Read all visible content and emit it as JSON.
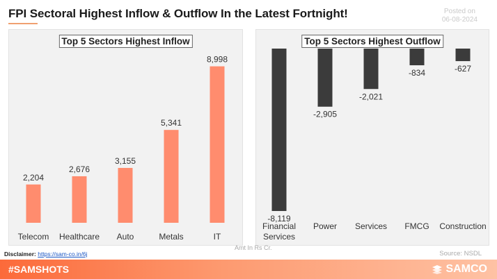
{
  "header": {
    "title": "FPI Sectoral Highest Inflow & Outflow In the Latest Fortnight!",
    "posted_label": "Posted on",
    "posted_date": "06-08-2024"
  },
  "colors": {
    "inflow_bar": "#ff8c6e",
    "outflow_bar": "#3b3b3b",
    "accent": "#fd6a3a"
  },
  "chart_data": [
    {
      "type": "bar",
      "title": "Top 5 Sectors Highest Inflow",
      "categories": [
        "Telecom",
        "Healthcare",
        "Auto",
        "Metals",
        "IT"
      ],
      "values": [
        2204,
        2676,
        3155,
        5341,
        8998
      ],
      "value_labels": [
        "2,204",
        "2,676",
        "3,155",
        "5,341",
        "8,998"
      ],
      "ylim": [
        0,
        9500
      ],
      "grid": false
    },
    {
      "type": "bar",
      "title": "Top 5 Sectors Highest Outflow",
      "categories": [
        "Financial Services",
        "Power",
        "Services",
        "FMCG",
        "Construction"
      ],
      "values": [
        -8119,
        -2905,
        -2021,
        -834,
        -627
      ],
      "value_labels": [
        "-8,119",
        "-2,905",
        "-2,021",
        "-834",
        "-627"
      ],
      "ylim": [
        -8500,
        0
      ],
      "grid": false
    }
  ],
  "footnotes": {
    "units": "Amt In Rs Cr.",
    "disclaimer_label": "Disclaimer:",
    "disclaimer_link": "https://sam-co.in/6j",
    "source": "Source: NSDL"
  },
  "footer": {
    "hashtag": "#SAMSHOTS",
    "brand": "SAMCO"
  }
}
